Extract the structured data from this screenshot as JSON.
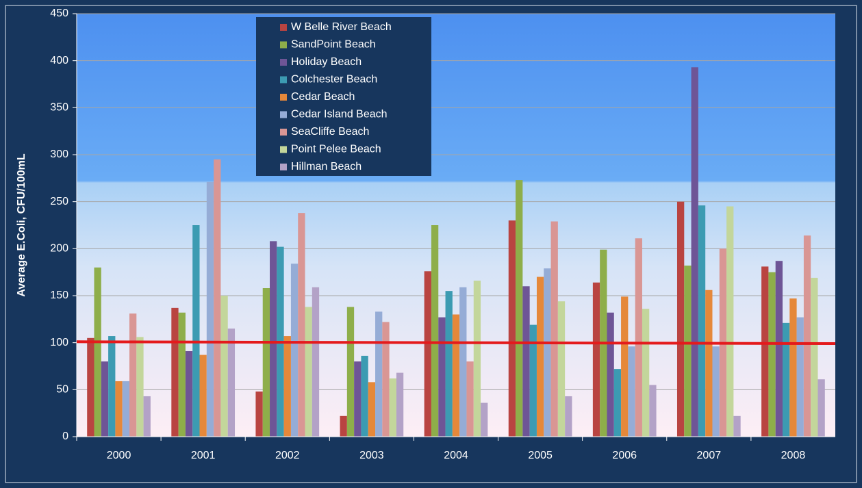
{
  "chart_data": {
    "type": "bar",
    "y_label": "Average E.Coli, CFU/100mL",
    "categories": [
      "2000",
      "2001",
      "2002",
      "2003",
      "2004",
      "2005",
      "2006",
      "2007",
      "2008"
    ],
    "series": [
      {
        "name": "W Belle River Beach",
        "color": "#b94441",
        "values": [
          105,
          137,
          48,
          22,
          176,
          230,
          164,
          250,
          181
        ]
      },
      {
        "name": "SandPoint Beach",
        "color": "#8eae4a",
        "values": [
          180,
          132,
          158,
          138,
          225,
          273,
          199,
          182,
          175
        ]
      },
      {
        "name": "Holiday Beach",
        "color": "#6e5596",
        "values": [
          80,
          91,
          208,
          80,
          127,
          160,
          132,
          393,
          187
        ]
      },
      {
        "name": "Colchester Beach",
        "color": "#3c9bb2",
        "values": [
          107,
          225,
          202,
          86,
          155,
          119,
          72,
          246,
          121
        ]
      },
      {
        "name": "Cedar Beach",
        "color": "#e5883a",
        "values": [
          59,
          87,
          107,
          58,
          130,
          170,
          149,
          156,
          147
        ]
      },
      {
        "name": "Cedar Island Beach",
        "color": "#95acd6",
        "values": [
          59,
          271,
          184,
          133,
          159,
          179,
          96,
          96,
          127
        ]
      },
      {
        "name": "SeaCliffe Beach",
        "color": "#d99694",
        "values": [
          131,
          295,
          238,
          122,
          80,
          229,
          211,
          200,
          214
        ]
      },
      {
        "name": "Point Pelee Beach",
        "color": "#c3d69b",
        "values": [
          106,
          150,
          138,
          62,
          166,
          144,
          136,
          245,
          169
        ]
      },
      {
        "name": "Hillman Beach",
        "color": "#b3a2c7",
        "values": [
          43,
          115,
          159,
          68,
          36,
          43,
          55,
          22,
          61
        ]
      }
    ],
    "reference_line": {
      "values": [
        101,
        99
      ],
      "color": "#e41a1c"
    },
    "ylim": [
      0,
      450
    ],
    "yticks": [
      0,
      50,
      100,
      150,
      200,
      250,
      300,
      350,
      400,
      450
    ],
    "grid": true
  }
}
